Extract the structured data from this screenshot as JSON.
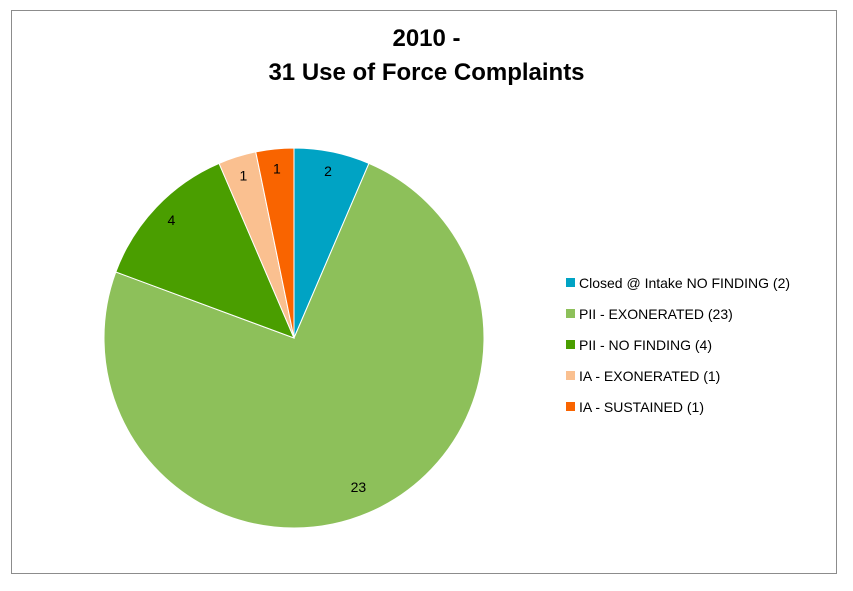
{
  "chart_data": {
    "type": "pie",
    "title": [
      "2010 -",
      "31 Use of Force Complaints"
    ],
    "slices": [
      {
        "label": "Closed @ Intake NO FINDING (2)",
        "value": 2,
        "data_label": "2",
        "color": "#00a3c4"
      },
      {
        "label": "PII - EXONERATED (23)",
        "value": 23,
        "data_label": "23",
        "color": "#8dc05a"
      },
      {
        "label": "PII - NO FINDING (4)",
        "value": 4,
        "data_label": "4",
        "color": "#4a9e00"
      },
      {
        "label": "IA - EXONERATED (1)",
        "value": 1,
        "data_label": "1",
        "color": "#fac090"
      },
      {
        "label": "IA - SUSTAINED (1)",
        "value": 1,
        "data_label": "1",
        "color": "#f96400"
      }
    ],
    "legend_position": "right"
  }
}
